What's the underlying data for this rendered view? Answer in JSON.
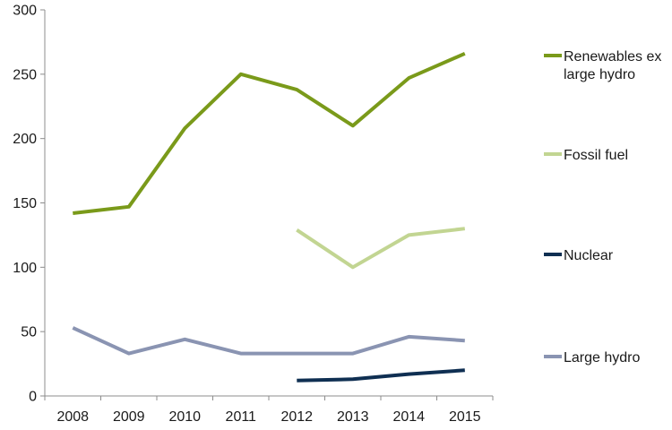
{
  "chart_data": {
    "type": "line",
    "title": "",
    "xlabel": "",
    "ylabel": "",
    "x": [
      "2008",
      "2009",
      "2010",
      "2011",
      "2012",
      "2013",
      "2014",
      "2015"
    ],
    "ylim": [
      0,
      300
    ],
    "yticks": [
      0,
      50,
      100,
      150,
      200,
      250,
      300
    ],
    "grid": false,
    "legend_position": "right",
    "series": [
      {
        "name": "Renewables ex large hydro",
        "legend_lines": [
          "Renewables ex",
          "large hydro"
        ],
        "color": "#7a9a1a",
        "values": [
          142,
          147,
          208,
          250,
          238,
          210,
          247,
          266
        ]
      },
      {
        "name": "Fossil fuel",
        "legend_lines": [
          "Fossil fuel"
        ],
        "color": "#c2d592",
        "values": [
          null,
          null,
          null,
          null,
          129,
          100,
          125,
          130
        ]
      },
      {
        "name": "Nuclear",
        "legend_lines": [
          "Nuclear"
        ],
        "color": "#0f2f52",
        "values": [
          null,
          null,
          null,
          null,
          12,
          13,
          17,
          20
        ]
      },
      {
        "name": "Large hydro",
        "legend_lines": [
          "Large hydro"
        ],
        "color": "#8a94b2",
        "values": [
          53,
          33,
          44,
          33,
          33,
          33,
          46,
          43
        ]
      }
    ]
  }
}
